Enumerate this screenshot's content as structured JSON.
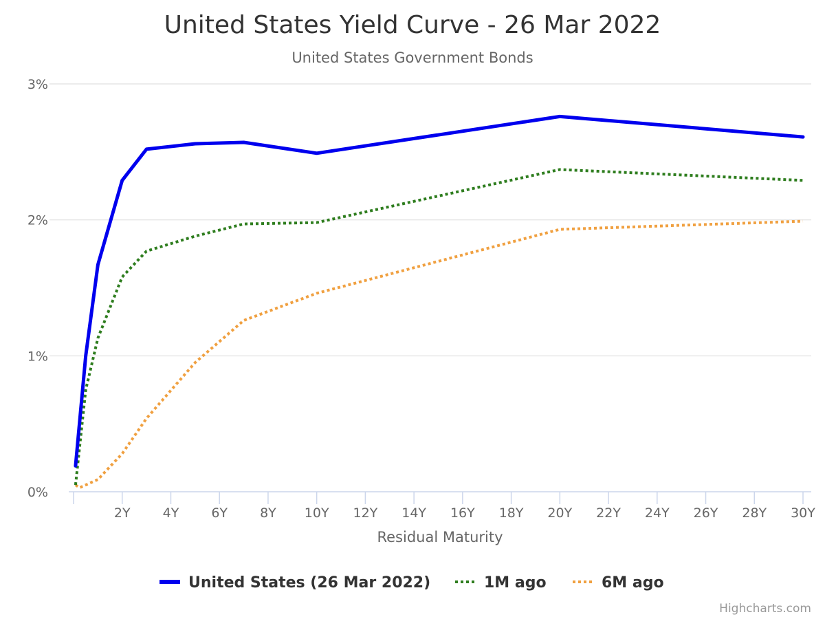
{
  "chart_data": {
    "type": "line",
    "title": "United States Yield Curve - 26 Mar 2022",
    "subtitle": "United States Government Bonds",
    "xlabel": "Residual Maturity",
    "ylabel": "",
    "xlim": [
      0,
      30
    ],
    "ylim": [
      0,
      3
    ],
    "x_ticks": [
      {
        "value": 2,
        "label": "2Y"
      },
      {
        "value": 4,
        "label": "4Y"
      },
      {
        "value": 6,
        "label": "6Y"
      },
      {
        "value": 8,
        "label": "8Y"
      },
      {
        "value": 10,
        "label": "10Y"
      },
      {
        "value": 12,
        "label": "12Y"
      },
      {
        "value": 14,
        "label": "14Y"
      },
      {
        "value": 16,
        "label": "16Y"
      },
      {
        "value": 18,
        "label": "18Y"
      },
      {
        "value": 20,
        "label": "20Y"
      },
      {
        "value": 22,
        "label": "22Y"
      },
      {
        "value": 24,
        "label": "24Y"
      },
      {
        "value": 26,
        "label": "26Y"
      },
      {
        "value": 28,
        "label": "28Y"
      },
      {
        "value": 30,
        "label": "30Y"
      }
    ],
    "y_ticks": [
      {
        "value": 0,
        "label": "0%"
      },
      {
        "value": 1,
        "label": "1%"
      },
      {
        "value": 2,
        "label": "2%"
      },
      {
        "value": 3,
        "label": "3%"
      }
    ],
    "grid": true,
    "legend_position": "bottom-center",
    "series": [
      {
        "name": "United States (26 Mar 2022)",
        "color": "#0000ee",
        "style": "solid",
        "points": [
          [
            0.083,
            0.19
          ],
          [
            0.5,
            1.0
          ],
          [
            1,
            1.67
          ],
          [
            2,
            2.29
          ],
          [
            3,
            2.52
          ],
          [
            5,
            2.56
          ],
          [
            7,
            2.57
          ],
          [
            10,
            2.49
          ],
          [
            20,
            2.76
          ],
          [
            30,
            2.61
          ]
        ]
      },
      {
        "name": "1M ago",
        "color": "#2e7d1e",
        "style": "dotted",
        "points": [
          [
            0.083,
            0.05
          ],
          [
            0.5,
            0.75
          ],
          [
            1,
            1.13
          ],
          [
            2,
            1.58
          ],
          [
            3,
            1.77
          ],
          [
            5,
            1.88
          ],
          [
            7,
            1.97
          ],
          [
            10,
            1.98
          ],
          [
            20,
            2.37
          ],
          [
            30,
            2.29
          ]
        ]
      },
      {
        "name": "6M ago",
        "color": "#f0a040",
        "style": "dotted",
        "points": [
          [
            0.083,
            0.05
          ],
          [
            0.25,
            0.03
          ],
          [
            1,
            0.09
          ],
          [
            2,
            0.28
          ],
          [
            3,
            0.54
          ],
          [
            5,
            0.95
          ],
          [
            7,
            1.26
          ],
          [
            10,
            1.46
          ],
          [
            20,
            1.93
          ],
          [
            30,
            1.99
          ]
        ]
      }
    ]
  },
  "credits": "Highcharts.com"
}
